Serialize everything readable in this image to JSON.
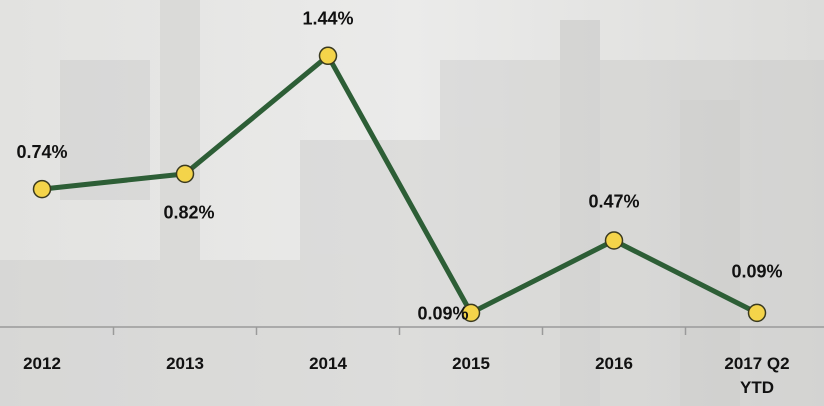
{
  "chart_data": {
    "type": "line",
    "categories": [
      "2012",
      "2013",
      "2014",
      "2015",
      "2016",
      "2017 Q2 YTD"
    ],
    "values": [
      0.74,
      0.82,
      1.44,
      0.09,
      0.47,
      0.09
    ],
    "value_labels": [
      "0.74%",
      "0.82%",
      "1.44%",
      "0.09%",
      "0.47%",
      "0.09%"
    ],
    "color": "#2d5e36",
    "marker_color": "#f4d44a",
    "ylim": [
      0,
      1.7
    ]
  }
}
